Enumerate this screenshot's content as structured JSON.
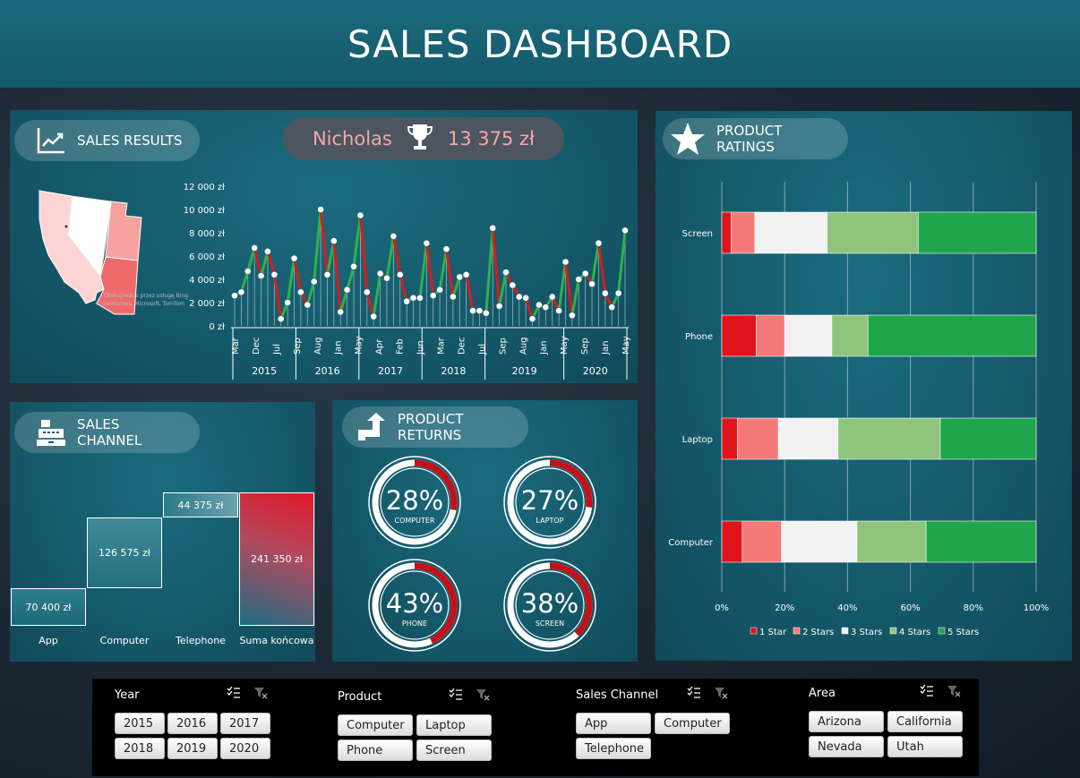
{
  "header": {
    "title": "SALES DASHBOARD"
  },
  "sales_results": {
    "title": "SALES RESULTS",
    "winner_name": "Nicholas",
    "winner_amount": "13 375 zł",
    "map_credit_1": "Obsługiwane przez usługę Bing",
    "map_credit_2": "© GeoNames, Microsoft, TomTom"
  },
  "sales_channel": {
    "title": "SALES CHANNEL",
    "cells": [
      {
        "label": "App",
        "value": "70 400 zł"
      },
      {
        "label": "Computer",
        "value": "126 575 zł"
      },
      {
        "label": "Telephone",
        "value": "44 375 zł"
      },
      {
        "label": "Suma końcowa",
        "value": "241 350 zł"
      }
    ]
  },
  "product_returns": {
    "title": "PRODUCT RETURNS",
    "items": [
      {
        "pct": "28%",
        "label": "COMPUTER",
        "value": 0.28
      },
      {
        "pct": "27%",
        "label": "LAPTOP",
        "value": 0.27
      },
      {
        "pct": "43%",
        "label": "PHONE",
        "value": 0.43
      },
      {
        "pct": "38%",
        "label": "SCREEN",
        "value": 0.38
      }
    ]
  },
  "product_ratings": {
    "title": "PRODUCT RATINGS"
  },
  "slicers": {
    "year": {
      "title": "Year",
      "options": [
        "2015",
        "2016",
        "2017",
        "2018",
        "2019",
        "2020"
      ]
    },
    "product": {
      "title": "Product",
      "options": [
        "Computer",
        "Laptop",
        "Phone",
        "Screen"
      ]
    },
    "channel": {
      "title": "Sales Channel",
      "options": [
        "App",
        "Computer",
        "Telephone"
      ]
    },
    "area": {
      "title": "Area",
      "options": [
        "Arizona",
        "California",
        "Nevada",
        "Utah"
      ]
    }
  },
  "chart_data": [
    {
      "type": "line",
      "title": "",
      "y_ticks": [
        "12 000 zł",
        "10 000 zł",
        "8 000 zł",
        "6 000 zł",
        "4 000 zł",
        "2 000 zł",
        "0 zł"
      ],
      "ylim": [
        0,
        12000
      ],
      "month_ticks": [
        "Mar",
        "Dec",
        "Jul",
        "Sep",
        "Aug",
        "Jan",
        "May",
        "Apr",
        "Feb",
        "Jun",
        "Mar",
        "Dec",
        "Jul",
        "Sep",
        "Aug",
        "Jan",
        "May",
        "Sep",
        "Jan",
        "May"
      ],
      "year_labels": [
        "2015",
        "2016",
        "2017",
        "2018",
        "2019",
        "2020"
      ],
      "values": [
        2600,
        2900,
        4700,
        6700,
        4300,
        6400,
        4400,
        600,
        2000,
        5800,
        2900,
        1800,
        3800,
        10000,
        4400,
        7300,
        1200,
        3100,
        5100,
        9500,
        2900,
        800,
        4500,
        4100,
        7700,
        4400,
        2100,
        2400,
        2400,
        7100,
        2600,
        3100,
        6600,
        2500,
        4200,
        4400,
        1300,
        1300,
        1100,
        8400,
        1700,
        4600,
        3500,
        2500,
        2400,
        600,
        1800,
        1600,
        2500,
        1300,
        5500,
        900,
        4000,
        4500,
        3600,
        7100,
        2800,
        1600,
        2800,
        8200
      ],
      "line_color_up": "#2db34a",
      "line_color_down": "#d61c1c"
    },
    {
      "type": "bar",
      "stacked": true,
      "orientation": "horizontal",
      "categories": [
        "Screen",
        "Phone",
        "Laptop",
        "Computer"
      ],
      "x_ticks": [
        "0%",
        "20%",
        "40%",
        "60%",
        "80%",
        "100%"
      ],
      "series": [
        {
          "name": "1 Star",
          "values": [
            0.03,
            0.11,
            0.05,
            0.065
          ],
          "color": "#e0141c"
        },
        {
          "name": "2 Stars",
          "values": [
            0.075,
            0.09,
            0.13,
            0.125
          ],
          "color": "#f47a7a"
        },
        {
          "name": "3 Stars",
          "values": [
            0.23,
            0.15,
            0.19,
            0.24
          ],
          "color": "#f2f2f2"
        },
        {
          "name": "4 Stars",
          "values": [
            0.29,
            0.115,
            0.325,
            0.22
          ],
          "color": "#8fc47c"
        },
        {
          "name": "5 Stars",
          "values": [
            0.375,
            0.535,
            0.305,
            0.35
          ],
          "color": "#1fa64c"
        }
      ]
    }
  ]
}
